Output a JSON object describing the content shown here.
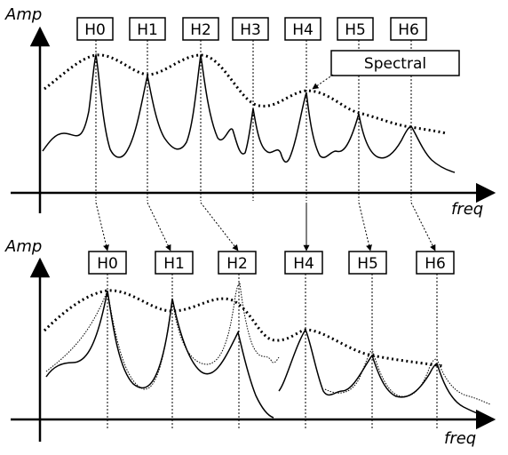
{
  "top_panel": {
    "y_axis_label": "Amp",
    "x_axis_label": "freq",
    "harmonic_labels": [
      "H0",
      "H1",
      "H2",
      "H3",
      "H4",
      "H5",
      "H6"
    ],
    "callout_label": "Spectral"
  },
  "bottom_panel": {
    "y_axis_label": "Amp",
    "x_axis_label": "freq",
    "harmonic_labels": [
      "H0",
      "H1",
      "H2",
      "H4",
      "H5",
      "H6"
    ]
  },
  "colors": {
    "ink": "#000000",
    "background": "#ffffff"
  }
}
